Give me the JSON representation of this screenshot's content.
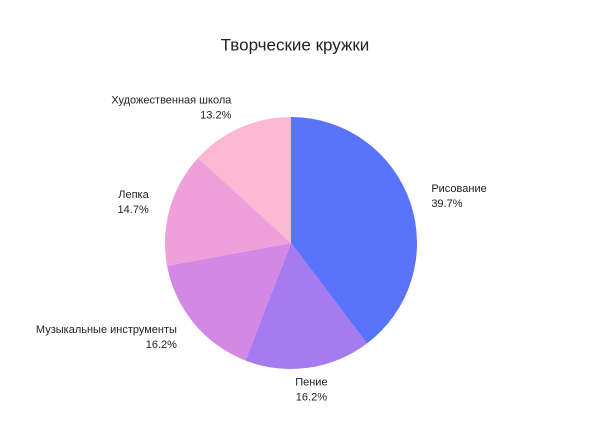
{
  "chart_data": {
    "type": "pie",
    "title": "Творческие кружки",
    "categories": [
      "Рисование",
      "Пение",
      "Музыкальные инструменты",
      "Лепка",
      "Художественная школа"
    ],
    "values": [
      39.7,
      16.2,
      16.2,
      14.7,
      13.2
    ],
    "value_labels": [
      "39.7%",
      "16.2%",
      "16.2%",
      "14.7%",
      "13.2%"
    ],
    "colors": [
      "#5a73fb",
      "#a77bf0",
      "#d488e6",
      "#efa0da",
      "#fbb8d3"
    ]
  }
}
